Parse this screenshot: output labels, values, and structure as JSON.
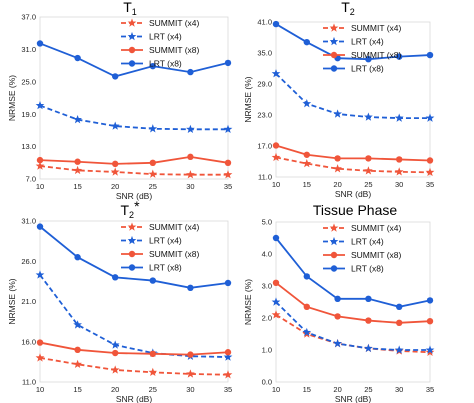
{
  "chart_data": [
    {
      "type": "line",
      "title": "T",
      "title_sub": "1",
      "title_sup": "",
      "xlabel": "SNR (dB)",
      "ylabel": "NRMSE (%)",
      "x": [
        10,
        15,
        20,
        25,
        30,
        35
      ],
      "xlim": [
        10,
        35
      ],
      "ylim": [
        7.0,
        37.0
      ],
      "yticks": [
        "7.0",
        "13.0",
        "19.0",
        "25.0",
        "31.0",
        "37.0"
      ],
      "xticks": [
        "10",
        "15",
        "20",
        "25",
        "30",
        "35"
      ],
      "legend_position": "top-right",
      "series": [
        {
          "name": "SUMMIT (x4)",
          "color": "#f0553a",
          "dashed": true,
          "marker": "star",
          "values": [
            9.4,
            8.6,
            8.3,
            7.9,
            7.8,
            7.8
          ]
        },
        {
          "name": "LRT (x4)",
          "color": "#1f5fd6",
          "dashed": true,
          "marker": "star",
          "values": [
            20.6,
            18.0,
            16.8,
            16.3,
            16.2,
            16.2
          ]
        },
        {
          "name": "SUMMIT (x8)",
          "color": "#f0553a",
          "dashed": false,
          "marker": "circle",
          "values": [
            10.5,
            10.2,
            9.8,
            10.0,
            11.1,
            10.0
          ]
        },
        {
          "name": "LRT (x8)",
          "color": "#1f5fd6",
          "dashed": false,
          "marker": "circle",
          "values": [
            32.1,
            29.4,
            26.0,
            27.9,
            26.8,
            28.5
          ]
        }
      ]
    },
    {
      "type": "line",
      "title": "T",
      "title_sub": "2",
      "title_sup": "",
      "xlabel": "SNR (dB)",
      "ylabel": "NRMSE (%)",
      "x": [
        10,
        15,
        20,
        25,
        30,
        35
      ],
      "xlim": [
        10,
        35
      ],
      "ylim": [
        11.0,
        41.0
      ],
      "yticks": [
        "11.0",
        "17.0",
        "23.0",
        "29.0",
        "35.0",
        "41.0"
      ],
      "xticks": [
        "10",
        "15",
        "20",
        "25",
        "30",
        "35"
      ],
      "legend_position": "top-right",
      "series": [
        {
          "name": "SUMMIT (x4)",
          "color": "#f0553a",
          "dashed": true,
          "marker": "star",
          "values": [
            14.8,
            13.6,
            12.6,
            12.2,
            12.0,
            11.9
          ]
        },
        {
          "name": "LRT (x4)",
          "color": "#1f5fd6",
          "dashed": true,
          "marker": "star",
          "values": [
            31.0,
            25.2,
            23.2,
            22.6,
            22.4,
            22.4
          ]
        },
        {
          "name": "SUMMIT (x8)",
          "color": "#f0553a",
          "dashed": false,
          "marker": "circle",
          "values": [
            17.1,
            15.3,
            14.6,
            14.6,
            14.4,
            14.2
          ]
        },
        {
          "name": "LRT (x8)",
          "color": "#1f5fd6",
          "dashed": false,
          "marker": "circle",
          "values": [
            40.6,
            37.1,
            34.0,
            33.8,
            34.3,
            34.6
          ]
        }
      ]
    },
    {
      "type": "line",
      "title": "T",
      "title_sub": "2",
      "title_sup": "*",
      "xlabel": "SNR (dB)",
      "ylabel": "NRMSE (%)",
      "x": [
        10,
        15,
        20,
        25,
        30,
        35
      ],
      "xlim": [
        10,
        35
      ],
      "ylim": [
        11.0,
        31.0
      ],
      "yticks": [
        "11.0",
        "16.0",
        "21.0",
        "26.0",
        "31.0"
      ],
      "xticks": [
        "10",
        "15",
        "20",
        "25",
        "30",
        "35"
      ],
      "legend_position": "top-right",
      "series": [
        {
          "name": "SUMMIT (x4)",
          "color": "#f0553a",
          "dashed": true,
          "marker": "star",
          "values": [
            14.0,
            13.2,
            12.5,
            12.2,
            12.0,
            11.9
          ]
        },
        {
          "name": "LRT (x4)",
          "color": "#1f5fd6",
          "dashed": true,
          "marker": "star",
          "values": [
            24.3,
            18.1,
            15.6,
            14.6,
            14.2,
            14.1
          ]
        },
        {
          "name": "SUMMIT (x8)",
          "color": "#f0553a",
          "dashed": false,
          "marker": "circle",
          "values": [
            15.9,
            15.0,
            14.6,
            14.5,
            14.4,
            14.7
          ]
        },
        {
          "name": "LRT (x8)",
          "color": "#1f5fd6",
          "dashed": false,
          "marker": "circle",
          "values": [
            30.3,
            26.5,
            24.0,
            23.6,
            22.7,
            23.3
          ]
        }
      ]
    },
    {
      "type": "line",
      "title": "Tissue Phase",
      "title_sub": "",
      "title_sup": "",
      "xlabel": "SNR (dB)",
      "ylabel": "NRMSE (%)",
      "x": [
        10,
        15,
        20,
        25,
        30,
        35
      ],
      "xlim": [
        10,
        35
      ],
      "ylim": [
        0.0,
        5.0
      ],
      "yticks": [
        "0.0",
        "1.0",
        "2.0",
        "3.0",
        "4.0",
        "5.0"
      ],
      "xticks": [
        "10",
        "15",
        "20",
        "25",
        "30",
        "35"
      ],
      "legend_position": "top-right",
      "series": [
        {
          "name": "SUMMIT (x4)",
          "color": "#f0553a",
          "dashed": true,
          "marker": "star",
          "values": [
            2.1,
            1.5,
            1.2,
            1.05,
            0.97,
            0.93
          ]
        },
        {
          "name": "LRT (x4)",
          "color": "#1f5fd6",
          "dashed": true,
          "marker": "star",
          "values": [
            2.5,
            1.55,
            1.2,
            1.05,
            1.0,
            1.0
          ]
        },
        {
          "name": "SUMMIT (x8)",
          "color": "#f0553a",
          "dashed": false,
          "marker": "circle",
          "values": [
            3.1,
            2.35,
            2.05,
            1.92,
            1.85,
            1.9
          ]
        },
        {
          "name": "LRT (x8)",
          "color": "#1f5fd6",
          "dashed": false,
          "marker": "circle",
          "values": [
            4.5,
            3.3,
            2.6,
            2.6,
            2.35,
            2.55
          ]
        }
      ]
    }
  ]
}
